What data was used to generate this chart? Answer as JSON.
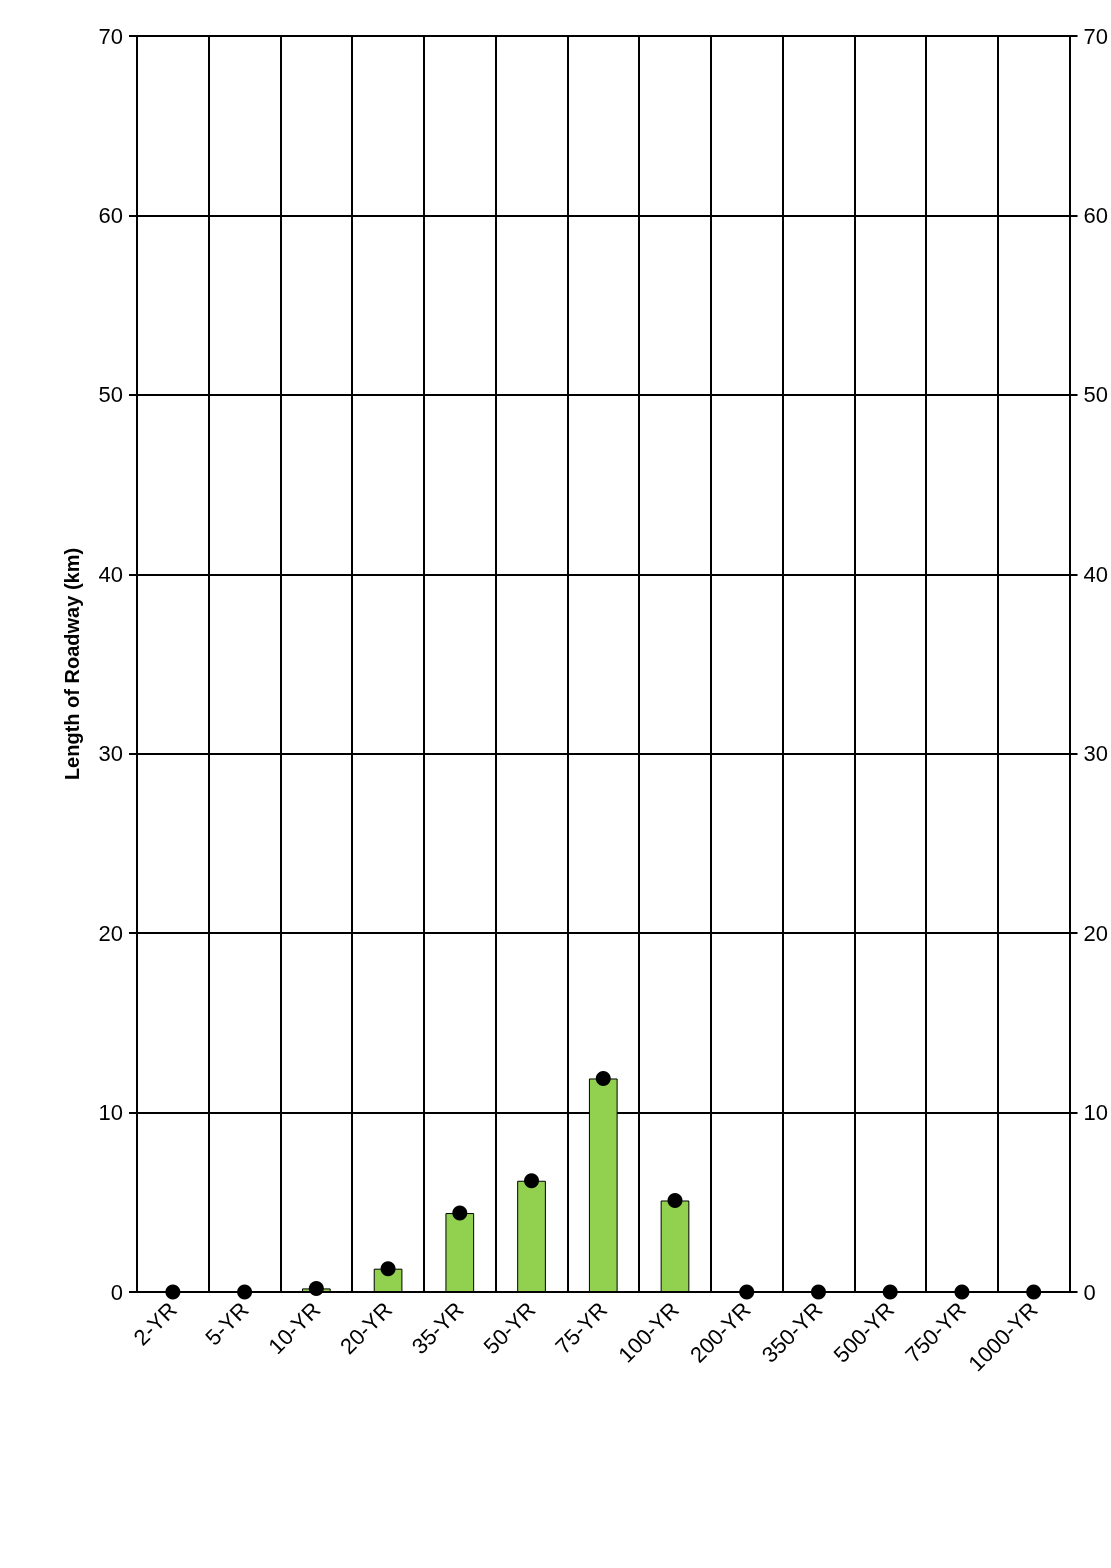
{
  "chart_data": {
    "type": "bar",
    "ylabel": "Length of Roadway (km)",
    "categories": [
      "2-YR",
      "5-YR",
      "10-YR",
      "20-YR",
      "35-YR",
      "50-YR",
      "75-YR",
      "100-YR",
      "200-YR",
      "350-YR",
      "500-YR",
      "750-YR",
      "1000-YR"
    ],
    "series": [
      {
        "color": "#92d050",
        "values": [
          0,
          0,
          0.2,
          1.3,
          4.4,
          6.2,
          11.9,
          5.1,
          0,
          0,
          0,
          0,
          0
        ]
      },
      {
        "type": "scatter",
        "color": "#000000",
        "values": [
          0,
          0,
          0.2,
          1.3,
          4.4,
          6.2,
          11.9,
          5.1,
          0,
          0,
          0,
          0,
          0
        ]
      }
    ],
    "ylim": [
      0,
      70
    ],
    "yticks": [
      0,
      10,
      20,
      30,
      40,
      50,
      60,
      70
    ],
    "y2lim": [
      0,
      70
    ],
    "y2ticks": [
      0,
      10,
      20,
      30,
      40,
      50,
      60,
      70
    ],
    "grid": true,
    "marker": "circle"
  }
}
